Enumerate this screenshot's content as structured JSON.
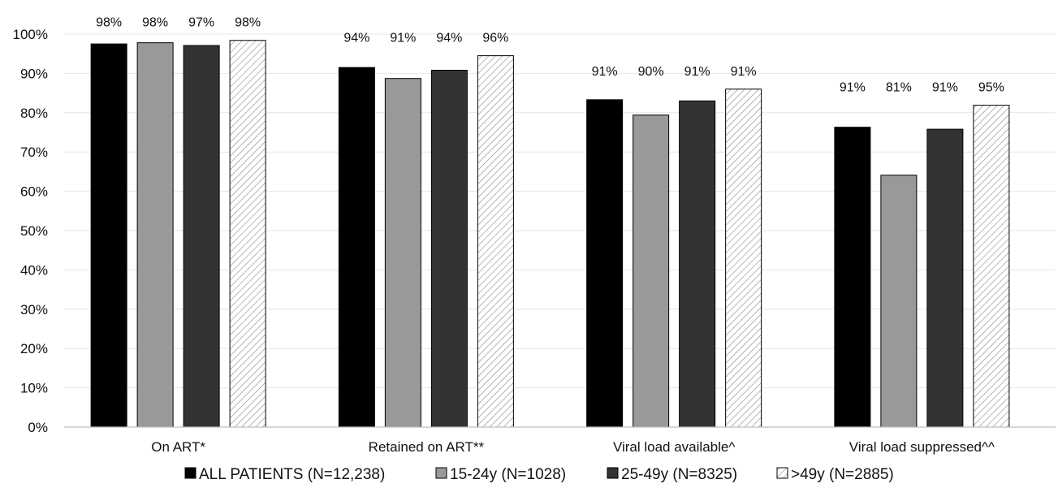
{
  "chart_data": {
    "type": "bar",
    "title": "",
    "xlabel": "",
    "ylabel": "",
    "ylim": [
      0,
      100
    ],
    "y_unit": "%",
    "y_ticks": [
      "0%",
      "10%",
      "20%",
      "30%",
      "40%",
      "50%",
      "60%",
      "70%",
      "80%",
      "90%",
      "100%"
    ],
    "grid": true,
    "legend_position": "bottom",
    "categories": [
      "On ART*",
      "Retained on ART**",
      "Viral load available^",
      "Viral load suppressed^^"
    ],
    "series": [
      {
        "name": "ALL PATIENTS (N=12,238)",
        "fill": "#000000",
        "pattern": "solid",
        "values": [
          97.5,
          91.5,
          83.3,
          76.3
        ],
        "labels": [
          "98%",
          "94%",
          "91%",
          "91%"
        ]
      },
      {
        "name": "15-24y (N=1028)",
        "fill": "#999999",
        "pattern": "solid",
        "values": [
          97.8,
          88.7,
          79.4,
          64.1
        ],
        "labels": [
          "98%",
          "91%",
          "90%",
          "81%"
        ]
      },
      {
        "name": "25-49y (N=8325)",
        "fill": "#333333",
        "pattern": "solid",
        "values": [
          97.1,
          90.8,
          83.0,
          75.8
        ],
        "labels": [
          "97%",
          "94%",
          "91%",
          "91%"
        ]
      },
      {
        "name": ">49y (N=2885)",
        "fill": "#ffffff",
        "pattern": "diagonal-hatch",
        "values": [
          98.4,
          94.5,
          86.0,
          81.9
        ],
        "labels": [
          "98%",
          "96%",
          "91%",
          "95%"
        ]
      }
    ]
  }
}
